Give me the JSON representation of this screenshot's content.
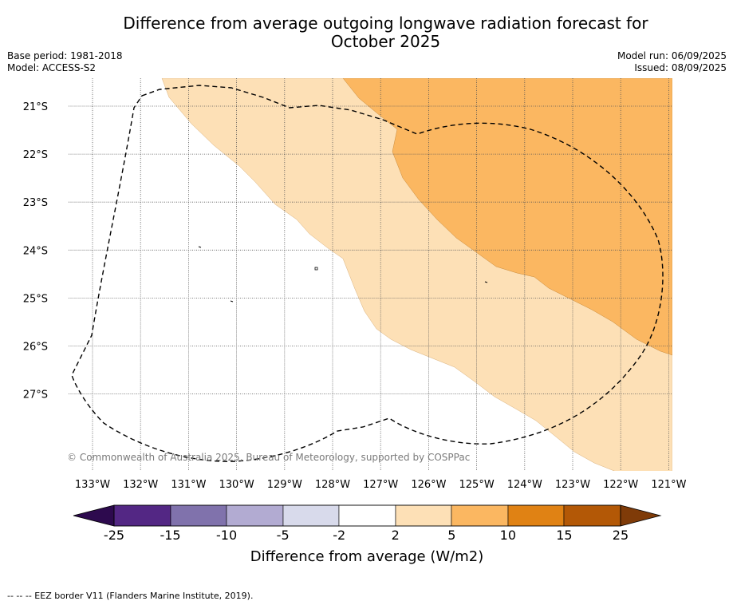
{
  "title_line1": "Difference from average outgoing longwave radiation forecast for",
  "title_line2": "October 2025",
  "base_period": "Base period: 1981-2018",
  "model": "Model: ACCESS-S2",
  "model_run": "Model run: 06/09/2025",
  "issued": "Issued: 08/09/2025",
  "copyright": "© Commonwealth of Australia 2025, Bureau of Meteorology, supported by COSPPac",
  "footer_note": "--  --  -- EEZ border V11 (Flanders Marine Institute, 2019).",
  "map": {
    "lon_labels": [
      "133°W",
      "132°W",
      "131°W",
      "130°W",
      "129°W",
      "128°W",
      "127°W",
      "126°W",
      "125°W",
      "124°W",
      "123°W",
      "122°W",
      "121°W"
    ],
    "lat_labels": [
      "21°S",
      "22°S",
      "23°S",
      "24°S",
      "25°S",
      "26°S",
      "27°S"
    ],
    "fill_colors": {
      "2_to_5": "#fde0b6",
      "5_to_10": "#fbb761"
    }
  },
  "colorbar": {
    "title": "Difference from average (W/m2)",
    "tick_labels": [
      "-25",
      "-15",
      "-10",
      "-5",
      "-2",
      "2",
      "5",
      "10",
      "15",
      "25"
    ],
    "colors": [
      "#2d0a4e",
      "#532784",
      "#8072ac",
      "#b2abd2",
      "#d8daeb",
      "#ffffff",
      "#fde0b6",
      "#fbb761",
      "#e08214",
      "#b35806",
      "#7f3b08"
    ]
  }
}
